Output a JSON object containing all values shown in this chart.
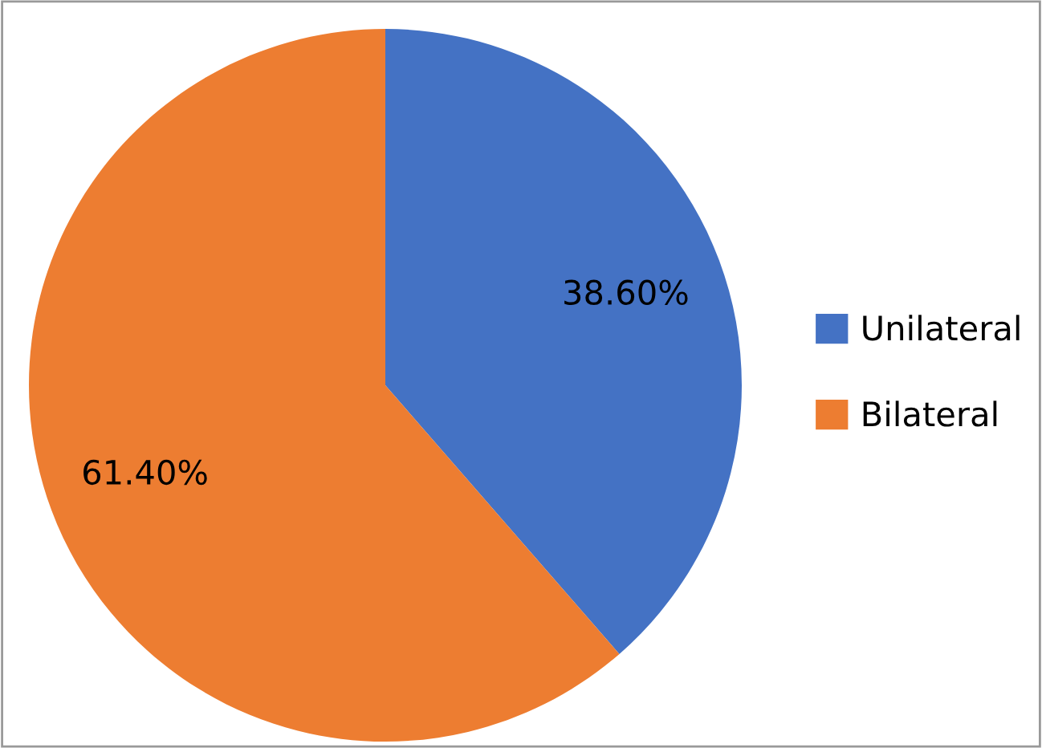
{
  "chart_data": {
    "type": "pie",
    "categories": [
      "Unilateral",
      "Bilateral"
    ],
    "values": [
      38.6,
      61.4
    ],
    "colors": [
      "#4472c4",
      "#ed7d31"
    ],
    "value_labels": [
      "38.60%",
      "61.40%"
    ],
    "legend": "right"
  }
}
